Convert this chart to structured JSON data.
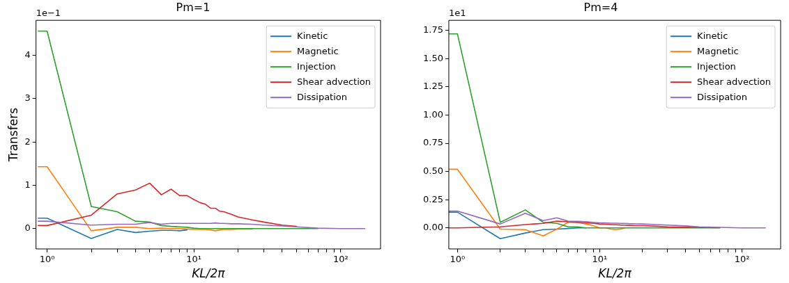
{
  "chart_data": [
    {
      "type": "line",
      "title": "Pm=1",
      "xlabel": "KL/2π",
      "ylabel": "Transfers",
      "log": "x",
      "legend": "top right",
      "annotations": [
        "1e−1"
      ],
      "x": [
        0.87,
        1,
        2,
        3,
        4,
        5,
        6,
        7,
        8,
        9,
        10,
        11,
        12,
        13,
        14,
        15,
        16,
        18,
        20,
        25,
        30,
        40,
        50,
        70,
        100,
        146
      ],
      "xlim": [
        0.84,
        187
      ],
      "xticks": [
        {
          "value": 1,
          "label": "10⁰"
        },
        {
          "value": 2,
          "label": null
        },
        {
          "value": 3,
          "label": null
        },
        {
          "value": 4,
          "label": null
        },
        {
          "value": 5,
          "label": null
        },
        {
          "value": 6,
          "label": null
        },
        {
          "value": 7,
          "label": null
        },
        {
          "value": 8,
          "label": null
        },
        {
          "value": 9,
          "label": null
        },
        {
          "value": 10,
          "label": "10¹"
        },
        {
          "value": 20,
          "label": null
        },
        {
          "value": 30,
          "label": null
        },
        {
          "value": 40,
          "label": null
        },
        {
          "value": 50,
          "label": null
        },
        {
          "value": 60,
          "label": null
        },
        {
          "value": 70,
          "label": null
        },
        {
          "value": 80,
          "label": null
        },
        {
          "value": 90,
          "label": null
        },
        {
          "value": 100,
          "label": "10²"
        }
      ],
      "ylim": [
        -0.47,
        4.81
      ],
      "yticks": [
        0,
        1,
        2,
        3,
        4
      ],
      "series": [
        {
          "name": "Kinetic",
          "color": "#1f77b4",
          "values": [
            0.24,
            0.24,
            -0.23,
            -0.02,
            -0.09,
            -0.06,
            -0.04,
            -0.04,
            -0.05,
            -0.03,
            null,
            null,
            null,
            null,
            null,
            null,
            null,
            null,
            null,
            null,
            null,
            null,
            null,
            null,
            null,
            null
          ]
        },
        {
          "name": "Magnetic",
          "color": "#ff7f0e",
          "values": [
            1.43,
            1.43,
            -0.05,
            0.03,
            0.03,
            0,
            0.01,
            0,
            0,
            -0.01,
            -0.02,
            -0.02,
            -0.02,
            -0.03,
            -0.05,
            -0.03,
            -0.02,
            -0.02,
            -0.01,
            -0.01,
            null,
            null,
            null,
            null,
            null,
            null
          ]
        },
        {
          "name": "Injection",
          "color": "#2ca02c",
          "values": [
            4.56,
            4.56,
            0.51,
            0.39,
            0.17,
            0.15,
            0.07,
            0.05,
            0.04,
            0.03,
            0.01,
            0,
            0,
            0,
            0,
            0,
            0,
            0,
            0,
            0,
            0,
            0,
            0,
            0,
            null,
            null
          ]
        },
        {
          "name": "Shear advection",
          "color": "#d62728",
          "values": [
            0.07,
            0.07,
            0.31,
            0.8,
            0.89,
            1.05,
            0.78,
            0.91,
            0.76,
            0.76,
            0.67,
            0.6,
            0.56,
            0.47,
            0.47,
            0.4,
            0.39,
            0.33,
            0.27,
            0.2,
            0.15,
            0.08,
            0.05,
            null,
            null,
            null
          ]
        },
        {
          "name": "Dissipation",
          "color": "#9467bd",
          "values": [
            0.17,
            0.17,
            0.08,
            0.1,
            0.1,
            0.14,
            0.1,
            0.12,
            0.12,
            0.12,
            0.12,
            0.12,
            0.12,
            0.12,
            0.13,
            0.12,
            0.12,
            0.11,
            0.11,
            0.1,
            0.08,
            0.06,
            0.04,
            0.01,
            0,
            0
          ]
        }
      ]
    },
    {
      "type": "line",
      "title": "Pm=4",
      "xlabel": "KL/2π",
      "log": "x",
      "legend": "top right",
      "annotations": [
        "1e1"
      ],
      "x": [
        0.87,
        1,
        2,
        3,
        4,
        5,
        6,
        7,
        8,
        9,
        10,
        11,
        12,
        13,
        14,
        15,
        16,
        18,
        20,
        25,
        30,
        40,
        50,
        70,
        100,
        146
      ],
      "xlim": [
        0.87,
        187
      ],
      "xticks": [
        {
          "value": 1,
          "label": "10⁰"
        },
        {
          "value": 2,
          "label": null
        },
        {
          "value": 3,
          "label": null
        },
        {
          "value": 4,
          "label": null
        },
        {
          "value": 5,
          "label": null
        },
        {
          "value": 6,
          "label": null
        },
        {
          "value": 7,
          "label": null
        },
        {
          "value": 8,
          "label": null
        },
        {
          "value": 9,
          "label": null
        },
        {
          "value": 10,
          "label": "10¹"
        },
        {
          "value": 20,
          "label": null
        },
        {
          "value": 30,
          "label": null
        },
        {
          "value": 40,
          "label": null
        },
        {
          "value": 50,
          "label": null
        },
        {
          "value": 60,
          "label": null
        },
        {
          "value": 70,
          "label": null
        },
        {
          "value": 80,
          "label": null
        },
        {
          "value": 90,
          "label": null
        },
        {
          "value": 100,
          "label": "10²"
        }
      ],
      "ylim": [
        -0.186,
        1.84
      ],
      "yticks": [
        {
          "value": 0,
          "label": "0.00"
        },
        {
          "value": 0.25,
          "label": "0.25"
        },
        {
          "value": 0.5,
          "label": "0.50"
        },
        {
          "value": 0.75,
          "label": "0.75"
        },
        {
          "value": 1,
          "label": "1.00"
        },
        {
          "value": 1.25,
          "label": "1.25"
        },
        {
          "value": 1.5,
          "label": "1.50"
        },
        {
          "value": 1.75,
          "label": "1.75"
        }
      ],
      "series": [
        {
          "name": "Kinetic",
          "color": "#1f77b4",
          "values": [
            0.14,
            0.14,
            -0.095,
            -0.045,
            -0.015,
            -0.01,
            -0.005,
            0,
            0,
            null,
            null,
            null,
            null,
            null,
            null,
            null,
            null,
            null,
            null,
            null,
            null,
            null,
            null,
            null,
            null,
            null
          ]
        },
        {
          "name": "Magnetic",
          "color": "#ff7f0e",
          "values": [
            0.52,
            0.52,
            -0.01,
            -0.015,
            -0.07,
            -0.01,
            0.05,
            0.05,
            0.035,
            0.02,
            0,
            0,
            -0.01,
            -0.015,
            -0.01,
            0,
            null,
            null,
            null,
            null,
            null,
            null,
            null,
            null,
            null,
            null
          ]
        },
        {
          "name": "Injection",
          "color": "#2ca02c",
          "values": [
            1.72,
            1.72,
            0.05,
            0.16,
            0.05,
            0.04,
            0.01,
            0.01,
            0,
            0,
            0,
            0,
            0,
            0,
            0,
            0,
            0,
            0,
            0,
            0,
            0,
            0,
            0,
            0,
            null,
            null
          ]
        },
        {
          "name": "Shear advection",
          "color": "#d62728",
          "values": [
            0,
            0,
            0.01,
            0.03,
            0.04,
            0.06,
            0.055,
            0.05,
            0.045,
            0.04,
            0.035,
            0.033,
            0.03,
            0.028,
            0.026,
            0.025,
            0.023,
            0.02,
            0.02,
            0.015,
            0.01,
            0.006,
            0.005,
            0.002,
            null,
            null
          ]
        },
        {
          "name": "Dissipation",
          "color": "#9467bd",
          "values": [
            0.15,
            0.15,
            0.035,
            0.13,
            0.065,
            0.09,
            0.06,
            0.058,
            0.055,
            0.05,
            0.045,
            0.044,
            0.042,
            0.042,
            0.04,
            0.04,
            0.038,
            0.036,
            0.035,
            0.03,
            0.025,
            0.018,
            0.01,
            0.005,
            0,
            0
          ]
        }
      ]
    }
  ]
}
